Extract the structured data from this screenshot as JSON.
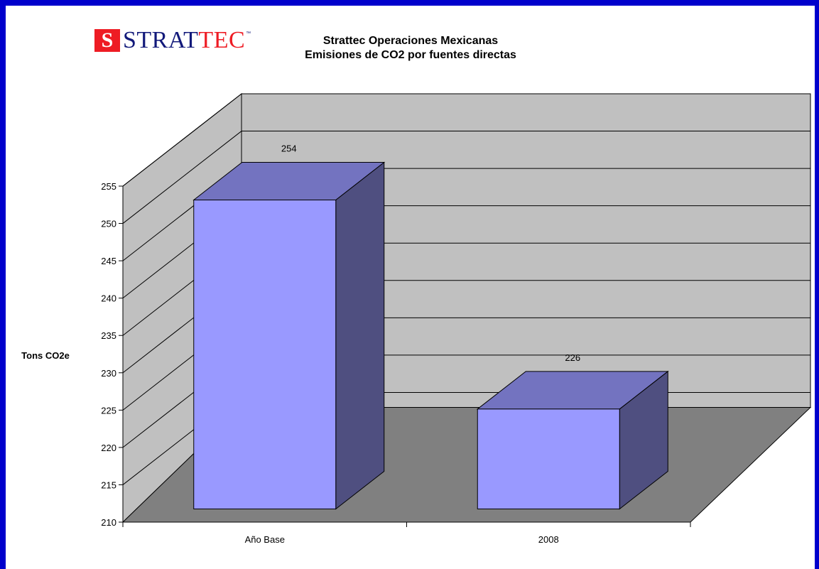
{
  "logo": {
    "prefix": "STRAT",
    "highlight": "TEC",
    "tm": "™"
  },
  "chart_data": {
    "type": "bar",
    "title": "Strattec Operaciones Mexicanas",
    "subtitle": "Emisiones de CO2 por fuentes directas",
    "ylabel": "Tons CO2e",
    "xlabel": "",
    "categories": [
      "Año Base",
      "2008"
    ],
    "values": [
      254,
      226
    ],
    "data_labels": [
      "254",
      "226"
    ],
    "ylim": [
      210,
      255
    ],
    "yticks": [
      210,
      215,
      220,
      225,
      230,
      235,
      240,
      245,
      250,
      255
    ],
    "grid": true,
    "three_d": true,
    "colors": {
      "bar_front": "#9999ff",
      "bar_top": "#7373c0",
      "bar_side": "#4f4f80",
      "wall": "#c0c0c0",
      "floor": "#808080",
      "frame_border": "#0000cc"
    }
  }
}
